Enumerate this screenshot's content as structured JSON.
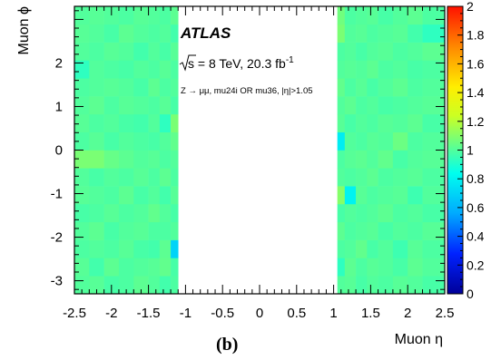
{
  "chart_data": {
    "type": "heatmap",
    "title": "",
    "xlabel": "Muon η",
    "ylabel": "Muon ϕ",
    "xlim": [
      -2.5,
      2.5
    ],
    "ylim": [
      -3.3,
      3.3
    ],
    "zlim": [
      0,
      2
    ],
    "x_ticks": [
      "-2.5",
      "-2",
      "-1.5",
      "-1",
      "-0.5",
      "0",
      "0.5",
      "1",
      "1.5",
      "2",
      "2.5"
    ],
    "y_ticks": [
      "-3",
      "-2",
      "-1",
      "0",
      "1",
      "2"
    ],
    "colorbar_ticks": [
      "0",
      "0.2",
      "0.4",
      "0.6",
      "0.8",
      "1",
      "1.2",
      "1.4",
      "1.6",
      "1.8",
      "2"
    ],
    "eta_bin_edges_negative": [
      -2.5,
      -2.3,
      -2.1,
      -1.9,
      -1.7,
      -1.5,
      -1.35,
      -1.2,
      -1.1
    ],
    "eta_bin_edges_positive": [
      1.05,
      1.15,
      1.3,
      1.45,
      1.6,
      1.8,
      2.0,
      2.2,
      2.5
    ],
    "phi_bins": 16,
    "values_negative_eta": [
      [
        1.0,
        1.01,
        0.98,
        0.99,
        1.02,
        1.0,
        0.97,
        0.99
      ],
      [
        1.01,
        0.97,
        1.02,
        0.99,
        1.0,
        1.01,
        1.03,
        0.98
      ],
      [
        0.99,
        1.0,
        0.99,
        1.01,
        0.98,
        0.97,
        1.02,
        0.7
      ],
      [
        1.0,
        1.02,
        0.98,
        1.0,
        1.01,
        0.99,
        0.99,
        1.0
      ],
      [
        0.98,
        0.99,
        1.01,
        0.99,
        1.0,
        1.03,
        1.0,
        0.98
      ],
      [
        1.01,
        1.0,
        0.99,
        1.02,
        0.98,
        1.0,
        0.97,
        1.01
      ],
      [
        1.0,
        0.98,
        1.0,
        0.99,
        1.01,
        0.99,
        1.02,
        0.99
      ],
      [
        1.08,
        1.08,
        1.04,
        1.02,
        1.0,
        1.01,
        0.99,
        1.0
      ],
      [
        0.99,
        1.01,
        0.98,
        1.0,
        0.99,
        0.98,
        1.0,
        1.03
      ],
      [
        1.01,
        0.99,
        1.0,
        0.98,
        0.97,
        1.0,
        0.93,
        1.08
      ],
      [
        1.0,
        1.02,
        0.99,
        1.01,
        1.0,
        0.99,
        1.01,
        0.98
      ],
      [
        0.99,
        1.0,
        1.01,
        1.0,
        0.98,
        1.02,
        0.99,
        1.0
      ],
      [
        0.93,
        1.0,
        0.99,
        0.98,
        1.0,
        0.99,
        1.01,
        0.99
      ],
      [
        1.0,
        0.99,
        1.01,
        1.0,
        0.97,
        1.0,
        0.98,
        1.01
      ],
      [
        1.01,
        1.0,
        0.98,
        1.02,
        1.0,
        0.99,
        1.0,
        0.97
      ],
      [
        1.0,
        1.01,
        1.0,
        0.99,
        1.01,
        1.0,
        0.99,
        1.02
      ]
    ],
    "values_positive_eta": [
      [
        1.0,
        1.01,
        0.98,
        1.0,
        0.99,
        1.01,
        1.0,
        0.98
      ],
      [
        0.93,
        1.02,
        0.99,
        1.01,
        1.0,
        0.98,
        1.02,
        1.0
      ],
      [
        0.99,
        1.0,
        1.03,
        0.98,
        1.0,
        0.96,
        1.01,
        0.99
      ],
      [
        1.02,
        0.99,
        1.0,
        1.01,
        0.98,
        1.0,
        0.99,
        1.01
      ],
      [
        0.98,
        1.0,
        0.99,
        1.0,
        1.02,
        0.99,
        1.0,
        0.98
      ],
      [
        1.1,
        0.8,
        1.01,
        0.99,
        1.0,
        1.01,
        0.96,
        1.0
      ],
      [
        1.0,
        0.99,
        1.0,
        1.02,
        0.99,
        1.0,
        1.01,
        0.99
      ],
      [
        0.99,
        1.01,
        1.02,
        1.0,
        1.03,
        0.98,
        1.0,
        1.01
      ],
      [
        0.78,
        1.0,
        0.99,
        1.01,
        1.0,
        1.05,
        0.99,
        1.0
      ],
      [
        1.01,
        0.98,
        1.0,
        0.99,
        1.01,
        1.0,
        1.02,
        0.98
      ],
      [
        1.0,
        1.02,
        0.99,
        1.0,
        0.98,
        0.99,
        1.0,
        1.01
      ],
      [
        1.03,
        0.99,
        1.01,
        0.98,
        1.0,
        1.02,
        0.99,
        1.0
      ],
      [
        1.0,
        1.01,
        1.0,
        1.02,
        0.99,
        1.0,
        0.98,
        0.99
      ],
      [
        0.99,
        1.0,
        0.98,
        1.0,
        1.01,
        0.99,
        1.0,
        1.02
      ],
      [
        1.08,
        1.0,
        1.01,
        0.99,
        1.0,
        1.01,
        0.97,
        0.93
      ],
      [
        1.06,
        0.99,
        1.0,
        1.01,
        0.98,
        1.0,
        1.02,
        0.99
      ]
    ]
  },
  "annotations": {
    "experiment": "ATLAS",
    "energy_lumi_prefix": "s",
    "energy_lumi": " = 8 TeV, 20.3 fb",
    "lumi_exponent": "-1",
    "selection": "Z → μμ,  mu24i OR mu36,  |η|>1.05",
    "panel_label": "(b)"
  },
  "palette": {
    "colorbar_stops": [
      "#000099",
      "#0022ff",
      "#00aaff",
      "#00ffee",
      "#66ff88",
      "#ccff22",
      "#ffee00",
      "#ff8800",
      "#ff1100"
    ]
  }
}
